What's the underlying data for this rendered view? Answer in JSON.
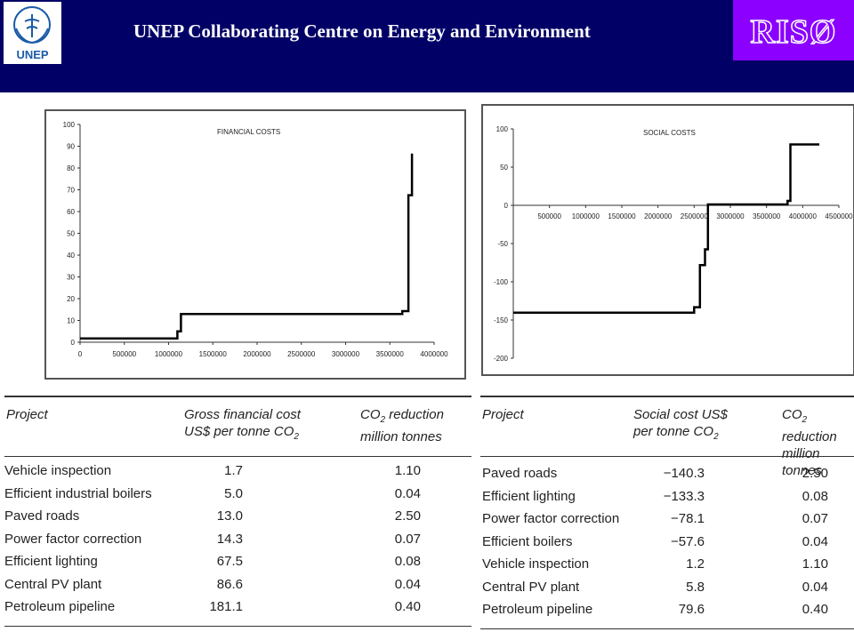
{
  "header": {
    "title": "UNEP Collaborating Centre on Energy and Environment",
    "unep_logo_text": "UNEP",
    "riso_logo_text": "RISØ",
    "background": "#000066",
    "riso_color": "#8b00ff"
  },
  "chart_data": [
    {
      "type": "line",
      "title": "FINANCIAL COSTS",
      "xlim": [
        0,
        4000000
      ],
      "ylim": [
        0,
        100
      ],
      "x_ticks": [
        0,
        500000,
        1000000,
        1500000,
        2000000,
        2500000,
        3000000,
        3500000,
        4000000
      ],
      "y_ticks": [
        0,
        10,
        20,
        30,
        40,
        50,
        60,
        70,
        80,
        90,
        100
      ],
      "grid": false,
      "series": [
        {
          "x": [
            0,
            1100000,
            1100000,
            1140000,
            1140000,
            3640000,
            3640000,
            3710000,
            3710000,
            3750000,
            3750000
          ],
          "y": [
            1.7,
            1.7,
            5.0,
            5.0,
            13.0,
            13.0,
            14.3,
            14.3,
            67.5,
            67.5,
            86.6
          ]
        }
      ]
    },
    {
      "type": "line",
      "title": "SOCIAL COSTS",
      "xlim": [
        0,
        4500000
      ],
      "ylim": [
        -200,
        100
      ],
      "x_ticks": [
        500000,
        1000000,
        1500000,
        2000000,
        2500000,
        3000000,
        3500000,
        4000000,
        4500000
      ],
      "y_ticks": [
        100,
        50,
        0,
        -50,
        -100,
        -150,
        -200
      ],
      "grid": false,
      "series": [
        {
          "x": [
            0,
            2500000,
            2500000,
            2580000,
            2580000,
            2650000,
            2650000,
            2690000,
            2690000,
            3790000,
            3790000,
            3830000,
            3830000,
            4230000
          ],
          "y": [
            -140.3,
            -140.3,
            -133.3,
            -133.3,
            -78.1,
            -78.1,
            -57.6,
            -57.6,
            1.2,
            1.2,
            5.8,
            5.8,
            79.6,
            79.6
          ]
        }
      ]
    }
  ],
  "financial_table": {
    "headers": {
      "project": "Project",
      "cost_l1": "Gross financial cost",
      "cost_l2": "US$ per tonne CO",
      "cost_sub": "2",
      "co2_l1": "CO",
      "co2_sub": "2",
      "co2_l1b": " reduction",
      "co2_l2": "million tonnes"
    },
    "rows": [
      {
        "project": "Vehicle inspection",
        "cost": "1.7",
        "co2": "1.10"
      },
      {
        "project": "Efficient industrial boilers",
        "cost": "5.0",
        "co2": "0.04"
      },
      {
        "project": "Paved roads",
        "cost": "13.0",
        "co2": "2.50"
      },
      {
        "project": "Power factor correction",
        "cost": "14.3",
        "co2": "0.07"
      },
      {
        "project": "Efficient lighting",
        "cost": "67.5",
        "co2": "0.08"
      },
      {
        "project": "Central PV plant",
        "cost": "86.6",
        "co2": "0.04"
      },
      {
        "project": "Petroleum pipeline",
        "cost": "181.1",
        "co2": "0.40"
      }
    ]
  },
  "social_table": {
    "headers": {
      "project": "Project",
      "cost_l1": "Social cost US$",
      "cost_l2": "per tonne CO",
      "cost_sub": "2",
      "co2_l1": "CO",
      "co2_sub": "2",
      "co2_l1b": " reduction",
      "co2_l2": "million tonnes"
    },
    "rows": [
      {
        "project": "Paved roads",
        "cost": "−140.3",
        "co2": "2.50"
      },
      {
        "project": "Efficient lighting",
        "cost": "−133.3",
        "co2": "0.08"
      },
      {
        "project": "Power factor correction",
        "cost": "−78.1",
        "co2": "0.07"
      },
      {
        "project": "Efficient boilers",
        "cost": "−57.6",
        "co2": "0.04"
      },
      {
        "project": "Vehicle inspection",
        "cost": "1.2",
        "co2": "1.10"
      },
      {
        "project": "Central PV plant",
        "cost": "5.8",
        "co2": "0.04"
      },
      {
        "project": "Petroleum pipeline",
        "cost": "79.6",
        "co2": "0.40"
      }
    ]
  }
}
